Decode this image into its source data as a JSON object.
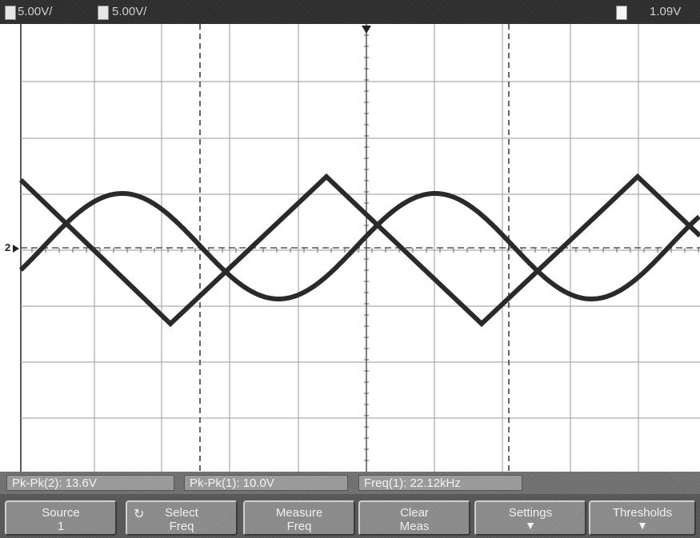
{
  "status_bar": {
    "ch1_scale": "5.00V/",
    "ch2_scale": "5.00V/",
    "center_text": "",
    "timebase": "",
    "trigger_mode": "",
    "trigger_level": "1.09V"
  },
  "measurements": [
    {
      "label": "Pk-Pk(2):",
      "value": "13.6V"
    },
    {
      "label": "Pk-Pk(1):",
      "value": "10.0V"
    },
    {
      "label": "Freq(1):",
      "value": "22.12kHz"
    }
  ],
  "softkeys": [
    {
      "line1": "Source",
      "line2": "1",
      "icon": ""
    },
    {
      "line1": "Select",
      "line2": "Freq",
      "icon": "rotary-knob-icon"
    },
    {
      "line1": "Measure",
      "line2": "Freq",
      "icon": ""
    },
    {
      "line1": "Clear",
      "line2": "Meas",
      "icon": ""
    },
    {
      "line1": "Settings",
      "line2": "",
      "icon": "down-arrow-icon"
    },
    {
      "line1": "Thresholds",
      "line2": "",
      "icon": "down-arrow-icon"
    }
  ],
  "ground_marker": "2",
  "colors": {
    "trace": "#2a2a2a",
    "grid": "#9a9a9a",
    "status_bg": "#2c2c2c",
    "softkey_bg": "#8f8f8f"
  }
}
